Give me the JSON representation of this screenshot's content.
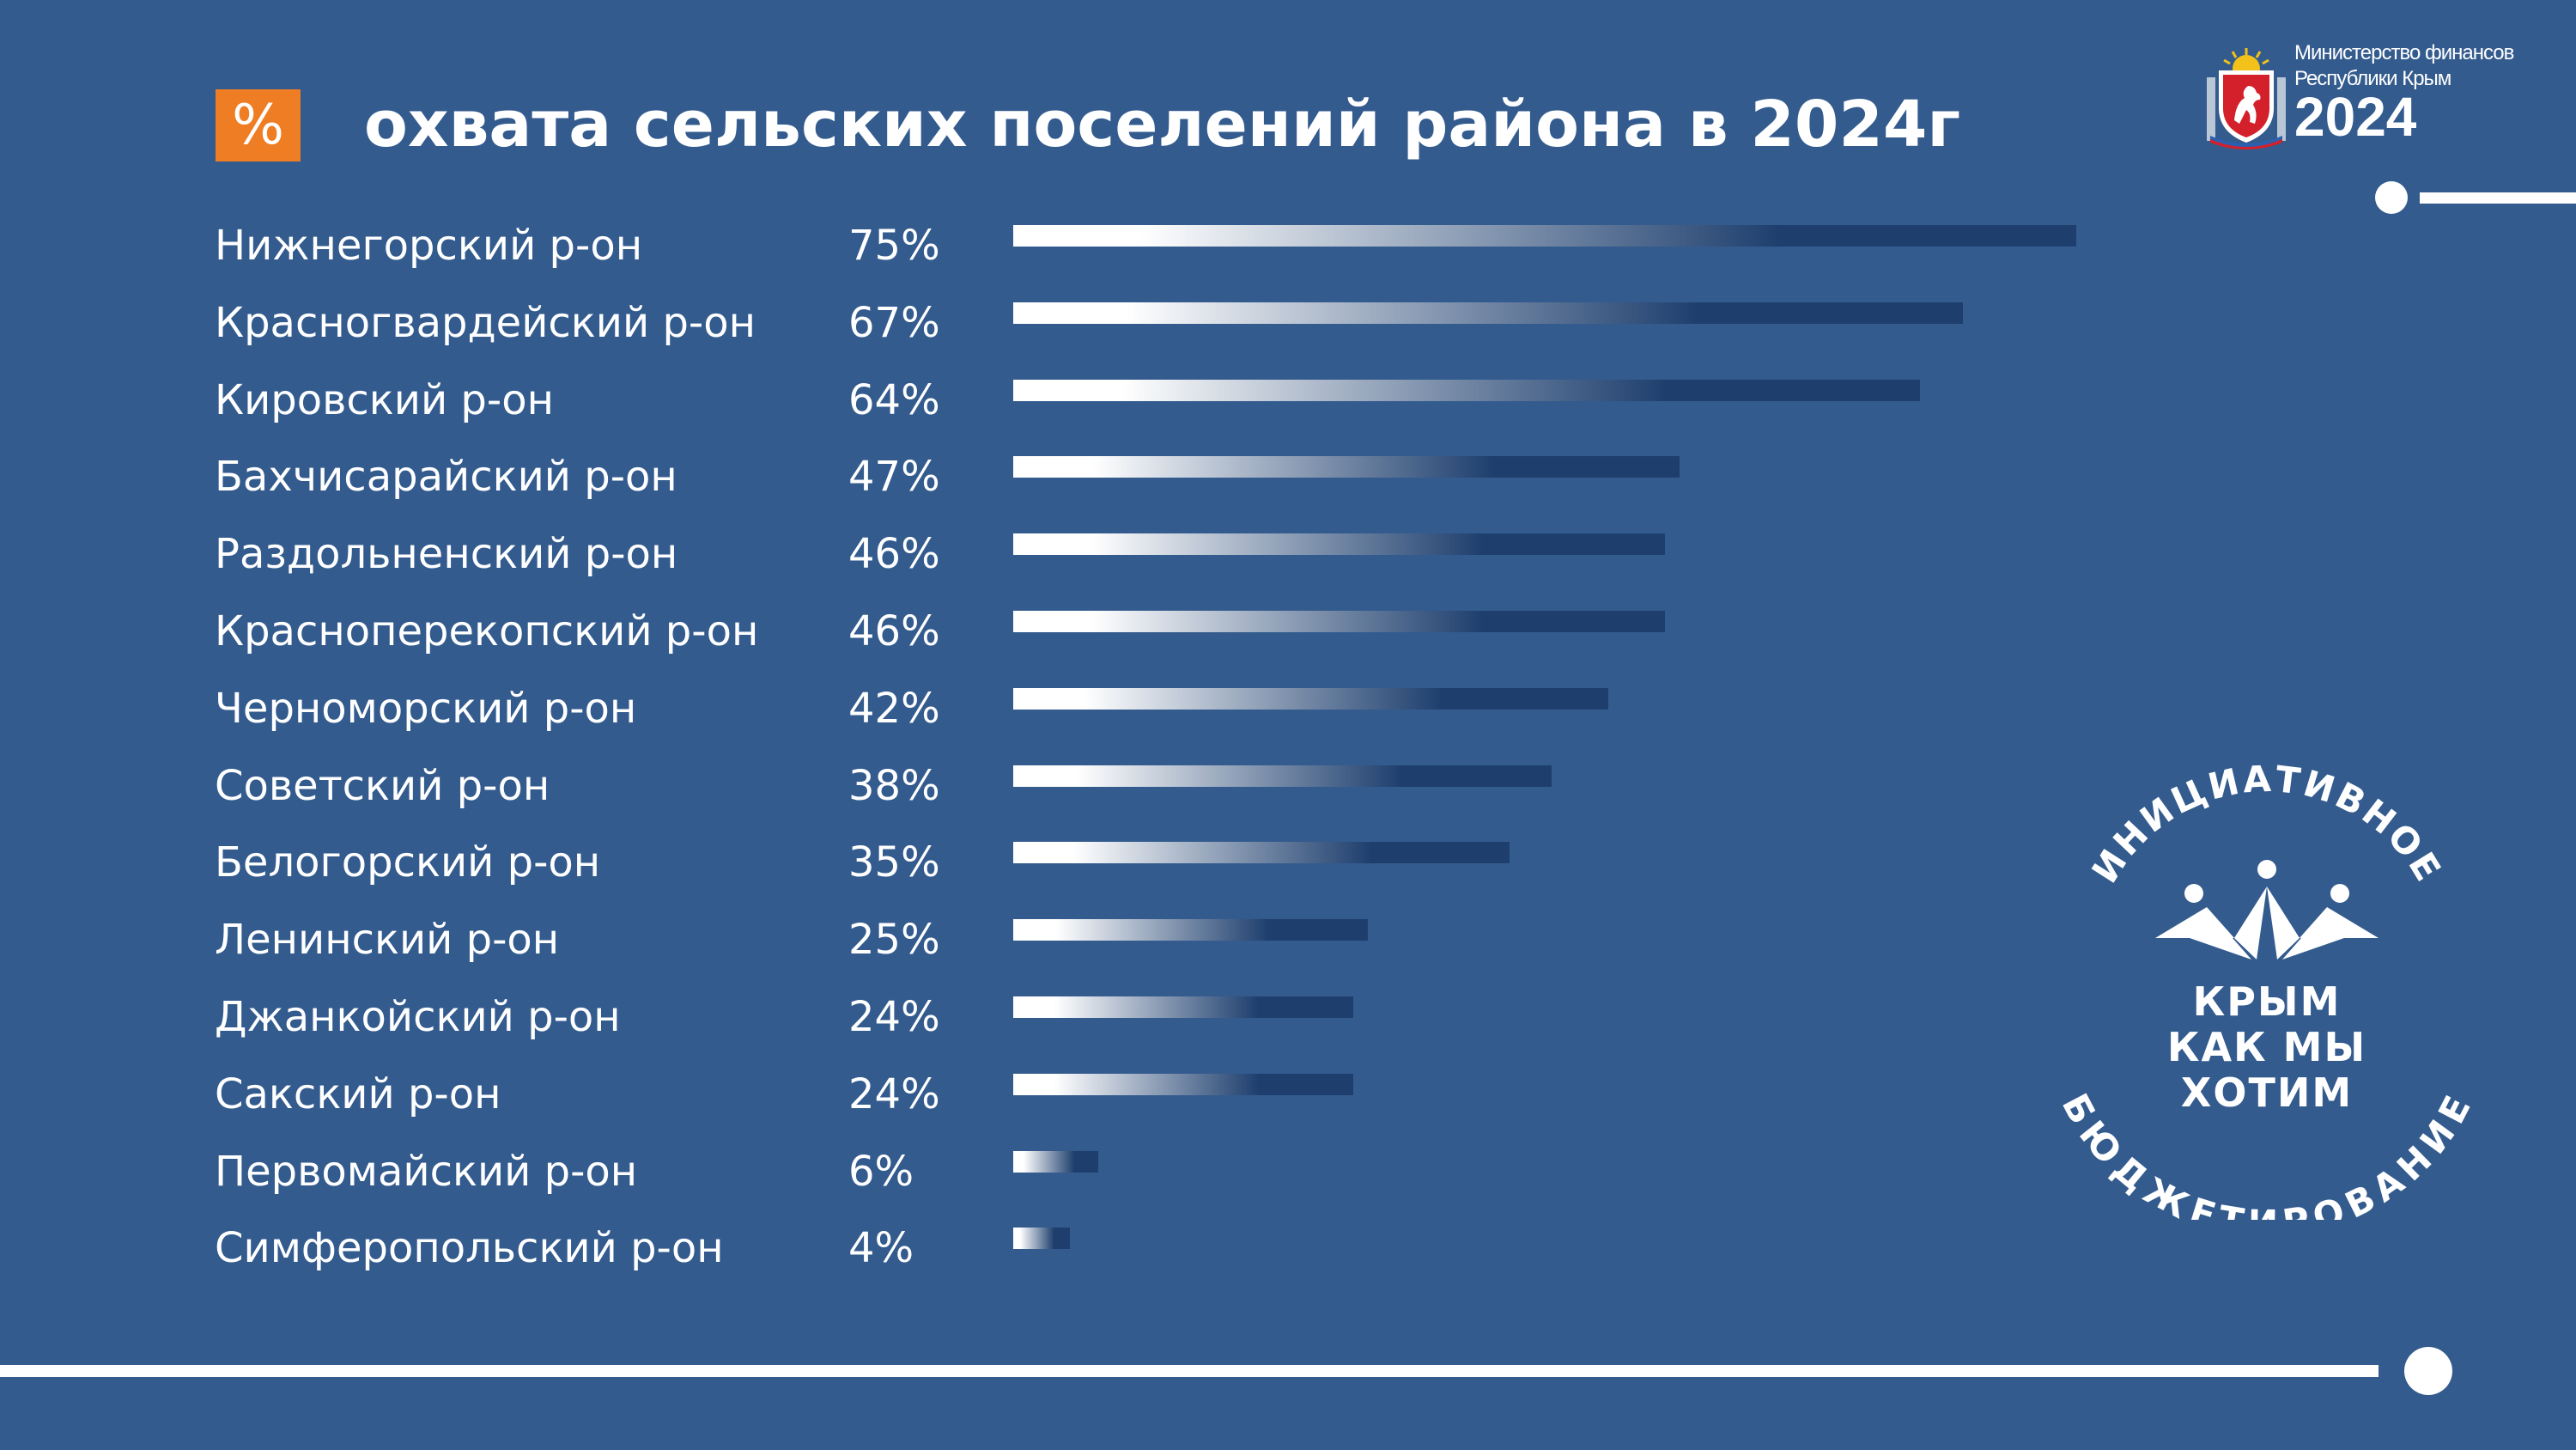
{
  "title": {
    "badge": "%",
    "text": "охвата сельских поселений района в 2024г"
  },
  "ministry": {
    "line1": "Министерство финансов",
    "line2": "Республики Крым",
    "year": "2024",
    "emblem_icon": "crimea-coat-of-arms-icon"
  },
  "logo": {
    "arc_top": "ИНИЦИАТИВНОЕ",
    "arc_bottom": "БЮДЖЕТИРОВАНИЕ",
    "line1": "КРЫМ",
    "line2": "КАК МЫ",
    "line3": "ХОТИМ",
    "icon": "people-figures-icon"
  },
  "colors": {
    "background": "#335b8e",
    "accent": "#ef7d23",
    "bar_dark": "#1e3f6e",
    "bar_light": "#ffffff"
  },
  "chart_data": {
    "type": "bar",
    "orientation": "horizontal",
    "categories": [
      "Нижнегорский р-он",
      "Красногвардейский р-он",
      "Кировский р-он",
      "Бахчисарайский р-он",
      "Раздольненский р-он",
      "Красноперекопский р-он",
      "Черноморский р-он",
      "Советский р-он",
      "Белогорский р-он",
      "Ленинский р-он",
      "Джанкойский р-он",
      "Сакский р-он",
      "Первомайский р-он",
      "Симферопольский р-он"
    ],
    "values": [
      75,
      67,
      64,
      47,
      46,
      46,
      42,
      38,
      35,
      25,
      24,
      24,
      6,
      4
    ],
    "value_labels": [
      "75%",
      "67%",
      "64%",
      "47%",
      "46%",
      "46%",
      "42%",
      "38%",
      "35%",
      "25%",
      "24%",
      "24%",
      "6%",
      "4%"
    ],
    "unit": "%",
    "title": "охвата сельских поселений района в 2024г",
    "xlim": [
      0,
      75
    ],
    "grid": false,
    "legend": "none"
  }
}
